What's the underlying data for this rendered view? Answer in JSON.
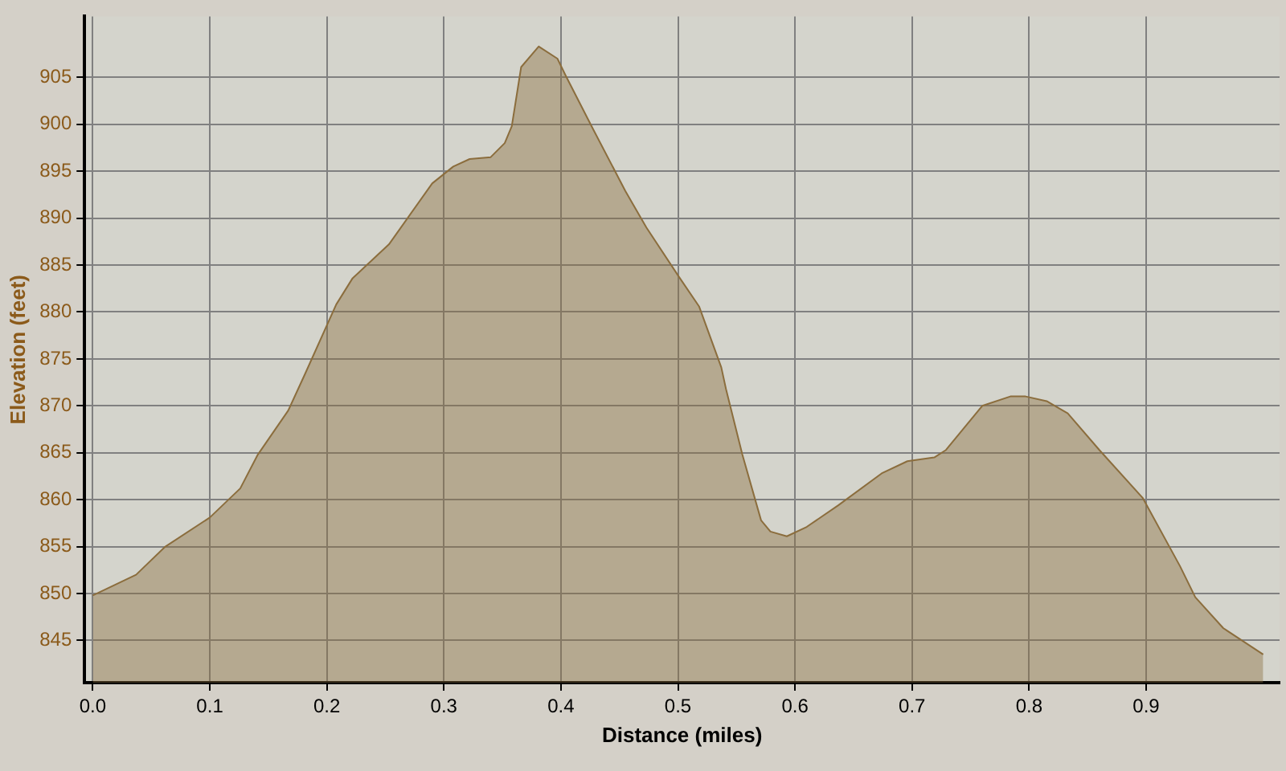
{
  "chart_data": {
    "type": "area",
    "xlabel": "Distance (miles)",
    "ylabel": "Elevation (feet)",
    "x": [
      0,
      0.037,
      0.062,
      0.1,
      0.126,
      0.141,
      0.167,
      0.181,
      0.208,
      0.222,
      0.253,
      0.29,
      0.308,
      0.322,
      0.34,
      0.352,
      0.358,
      0.366,
      0.381,
      0.397,
      0.404,
      0.427,
      0.455,
      0.473,
      0.5,
      0.518,
      0.537,
      0.541,
      0.555,
      0.571,
      0.579,
      0.593,
      0.61,
      0.637,
      0.674,
      0.696,
      0.719,
      0.729,
      0.76,
      0.784,
      0.797,
      0.815,
      0.833,
      0.86,
      0.897,
      0.929,
      0.942,
      0.966,
      1.0
    ],
    "series": [
      {
        "color": "#8b6d3d",
        "values": [
          849.8,
          852.0,
          855.0,
          858.1,
          861.2,
          864.8,
          869.5,
          873.3,
          880.8,
          883.6,
          887.2,
          893.7,
          895.5,
          896.3,
          896.5,
          898.0,
          899.8,
          906.1,
          908.3,
          907.0,
          905.2,
          899.6,
          892.9,
          889.0,
          883.9,
          880.6,
          874.1,
          871.8,
          864.8,
          857.8,
          856.6,
          856.1,
          857.1,
          859.4,
          862.8,
          864.1,
          864.5,
          865.3,
          870.0,
          871.0,
          871.0,
          870.5,
          869.2,
          865.3,
          860.2,
          852.9,
          849.6,
          846.3,
          843.5
        ]
      }
    ],
    "xlim": [
      -0.007,
      1.014
    ],
    "xticks": [
      {
        "value": 0,
        "label": "0.0"
      },
      0.1,
      0.2,
      0.3,
      0.4,
      0.5,
      0.6,
      0.7,
      0.8,
      0.9
    ],
    "ylim": [
      840.5,
      911.5
    ],
    "yticks": [
      845,
      850,
      855,
      860,
      865,
      870,
      875,
      880,
      885,
      890,
      895,
      900,
      905
    ],
    "grid": true,
    "legend": false,
    "marker": "none"
  }
}
